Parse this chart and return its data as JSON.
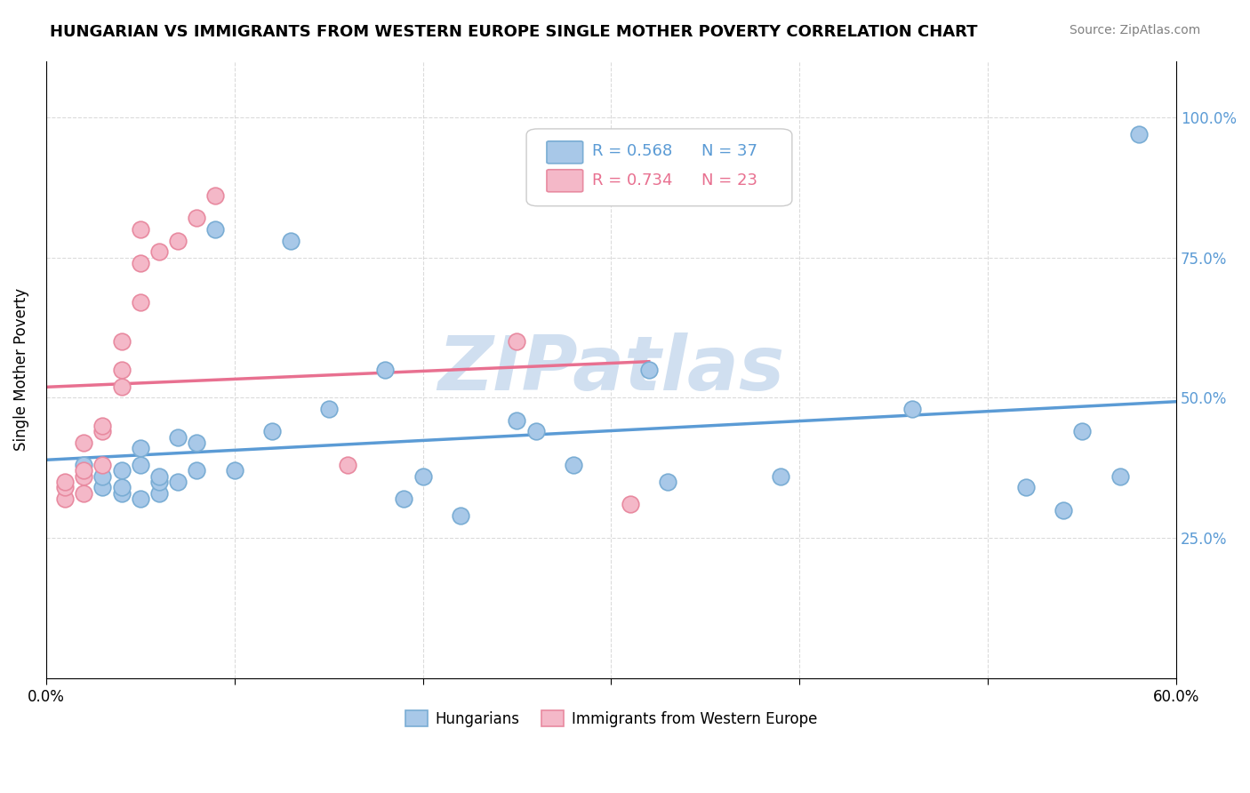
{
  "title": "HUNGARIAN VS IMMIGRANTS FROM WESTERN EUROPE SINGLE MOTHER POVERTY CORRELATION CHART",
  "source": "Source: ZipAtlas.com",
  "ylabel": "Single Mother Poverty",
  "xlim": [
    0.0,
    0.6
  ],
  "ylim": [
    0.0,
    1.1
  ],
  "ytick_labels": [
    "",
    "25.0%",
    "50.0%",
    "75.0%",
    "100.0%"
  ],
  "ytick_vals": [
    0.0,
    0.25,
    0.5,
    0.75,
    1.0
  ],
  "xtick_labels": [
    "0.0%",
    "",
    "",
    "",
    "",
    "",
    "60.0%"
  ],
  "xtick_vals": [
    0.0,
    0.1,
    0.2,
    0.3,
    0.4,
    0.5,
    0.6
  ],
  "legend_blue_r": "R = 0.568",
  "legend_blue_n": "N = 37",
  "legend_pink_r": "R = 0.734",
  "legend_pink_n": "N = 23",
  "blue_color": "#a8c8e8",
  "blue_edge": "#7aadd4",
  "pink_color": "#f4b8c8",
  "pink_edge": "#e88aa0",
  "trendline_blue": "#5b9bd5",
  "trendline_pink": "#e87090",
  "watermark_color": "#d0dff0",
  "blue_x": [
    0.02,
    0.03,
    0.03,
    0.04,
    0.04,
    0.04,
    0.05,
    0.05,
    0.05,
    0.06,
    0.06,
    0.06,
    0.07,
    0.07,
    0.08,
    0.08,
    0.09,
    0.1,
    0.12,
    0.13,
    0.15,
    0.18,
    0.19,
    0.2,
    0.22,
    0.25,
    0.26,
    0.28,
    0.32,
    0.33,
    0.39,
    0.46,
    0.52,
    0.54,
    0.55,
    0.57,
    0.58
  ],
  "blue_y": [
    0.38,
    0.34,
    0.36,
    0.33,
    0.34,
    0.37,
    0.32,
    0.38,
    0.41,
    0.33,
    0.35,
    0.36,
    0.35,
    0.43,
    0.37,
    0.42,
    0.8,
    0.37,
    0.44,
    0.78,
    0.48,
    0.55,
    0.32,
    0.36,
    0.29,
    0.46,
    0.44,
    0.38,
    0.55,
    0.35,
    0.36,
    0.48,
    0.34,
    0.3,
    0.44,
    0.36,
    0.97
  ],
  "pink_x": [
    0.01,
    0.01,
    0.01,
    0.02,
    0.02,
    0.02,
    0.02,
    0.03,
    0.03,
    0.03,
    0.04,
    0.04,
    0.04,
    0.05,
    0.05,
    0.05,
    0.06,
    0.07,
    0.08,
    0.09,
    0.16,
    0.25,
    0.31
  ],
  "pink_y": [
    0.32,
    0.34,
    0.35,
    0.33,
    0.36,
    0.37,
    0.42,
    0.38,
    0.44,
    0.45,
    0.52,
    0.55,
    0.6,
    0.67,
    0.74,
    0.8,
    0.76,
    0.78,
    0.82,
    0.86,
    0.38,
    0.6,
    0.31
  ]
}
